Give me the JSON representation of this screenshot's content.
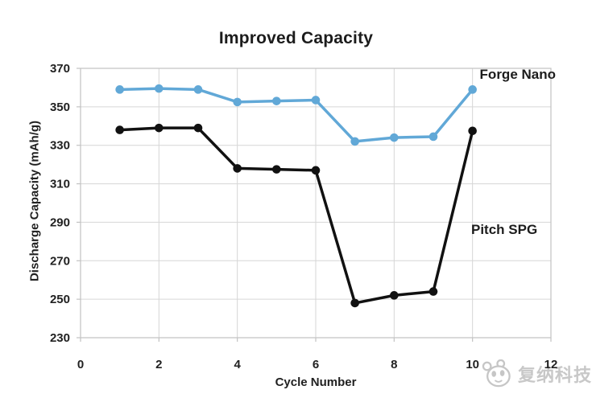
{
  "chart_data": {
    "type": "line",
    "title": "Improved Capacity",
    "xlabel": "Cycle Number",
    "ylabel": "Discharge Capacity (mAh/g)",
    "xlim": [
      0,
      12
    ],
    "ylim": [
      230,
      370
    ],
    "x_ticks": [
      0,
      2,
      4,
      6,
      8,
      10,
      12
    ],
    "y_ticks": [
      230,
      250,
      270,
      290,
      310,
      330,
      350,
      370
    ],
    "grid": true,
    "grid_color": "#d6d6d6",
    "border_color": "#c2c2c2",
    "tick_text_color": "#212121",
    "legend_position": "inline-annotations",
    "x": [
      1,
      2,
      3,
      4,
      5,
      6,
      7,
      8,
      9,
      10
    ],
    "series": [
      {
        "name": "Forge Nano",
        "color": "#61A8D7",
        "values": [
          359,
          359.5,
          359,
          352.5,
          353,
          353.5,
          332,
          334,
          334.5,
          359
        ]
      },
      {
        "name": "Pitch SPG",
        "color": "#111111",
        "values": [
          338,
          339,
          339,
          318,
          317.5,
          317,
          248,
          252,
          254,
          337.5
        ]
      }
    ],
    "annotations": [
      {
        "text": "Forge Nano"
      },
      {
        "text": "Pitch SPG"
      }
    ]
  },
  "watermark": {
    "text": "复纳科技",
    "logo_icon": "panda-logo-icon",
    "color": "#c8c8c8"
  }
}
